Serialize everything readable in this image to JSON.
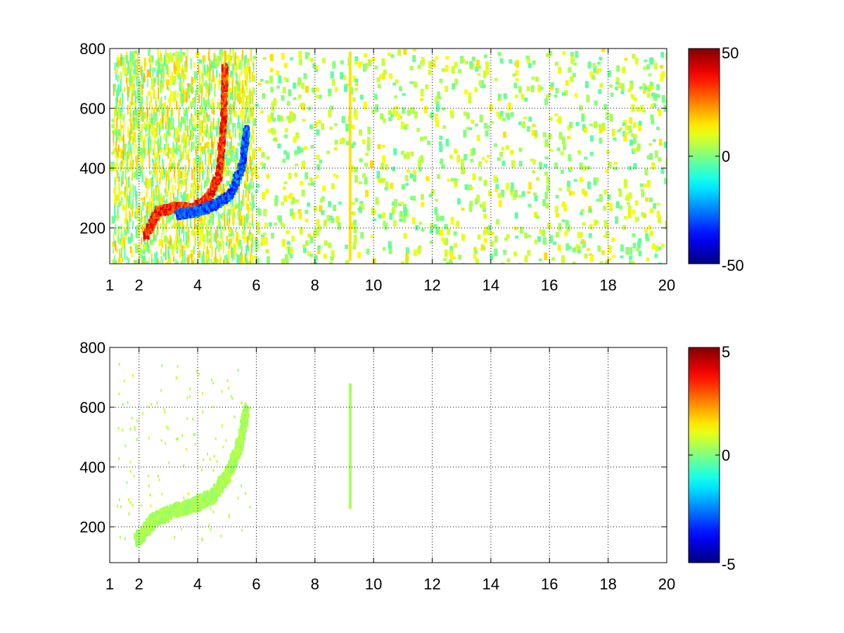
{
  "chart_data": [
    {
      "type": "heatmap",
      "title": "",
      "xlabel": "",
      "ylabel": "",
      "xlim": [
        1,
        20
      ],
      "ylim": [
        80,
        800
      ],
      "x_ticks": [
        "1",
        "2",
        "4",
        "6",
        "8",
        "10",
        "12",
        "14",
        "16",
        "18",
        "20"
      ],
      "y_ticks": [
        "200",
        "400",
        "600",
        "800"
      ],
      "grid": true,
      "colormap": "jet",
      "clim": [
        -50,
        50
      ],
      "colorbar_ticks": [
        "50",
        "0",
        "-50"
      ],
      "features": [
        {
          "name": "upper-arc",
          "points": [
            [
              2.2,
              180
            ],
            [
              2.6,
              260
            ],
            [
              3.2,
              275
            ],
            [
              3.8,
              270
            ],
            [
              4.3,
              300
            ],
            [
              4.7,
              380
            ],
            [
              4.85,
              560
            ],
            [
              4.9,
              750
            ]
          ],
          "value": 40
        },
        {
          "name": "lower-arc",
          "points": [
            [
              3.3,
              250
            ],
            [
              3.9,
              260
            ],
            [
              4.5,
              280
            ],
            [
              5.1,
              320
            ],
            [
              5.5,
              420
            ],
            [
              5.65,
              540
            ]
          ],
          "value": -35
        },
        {
          "name": "vertical-stripe",
          "x": 9.2,
          "y_range": [
            90,
            790
          ],
          "value": 15
        }
      ]
    },
    {
      "type": "heatmap",
      "title": "",
      "xlabel": "",
      "ylabel": "",
      "xlim": [
        1,
        20
      ],
      "ylim": [
        80,
        800
      ],
      "x_ticks": [
        "1",
        "2",
        "4",
        "6",
        "8",
        "10",
        "12",
        "14",
        "16",
        "18",
        "20"
      ],
      "y_ticks": [
        "200",
        "400",
        "600",
        "800"
      ],
      "grid": true,
      "colormap": "jet",
      "clim": [
        -5,
        5
      ],
      "colorbar_ticks": [
        "5",
        "0",
        "-5"
      ],
      "features": [
        {
          "name": "green-region",
          "points": [
            [
              1.9,
              160
            ],
            [
              2.5,
              230
            ],
            [
              3.2,
              260
            ],
            [
              3.9,
              280
            ],
            [
              4.5,
              310
            ],
            [
              5.0,
              380
            ],
            [
              5.4,
              480
            ],
            [
              5.65,
              600
            ]
          ],
          "value": 0.4
        },
        {
          "name": "vertical-stripe",
          "x": 9.2,
          "y_range": [
            260,
            680
          ],
          "value": 0.4
        }
      ]
    }
  ]
}
